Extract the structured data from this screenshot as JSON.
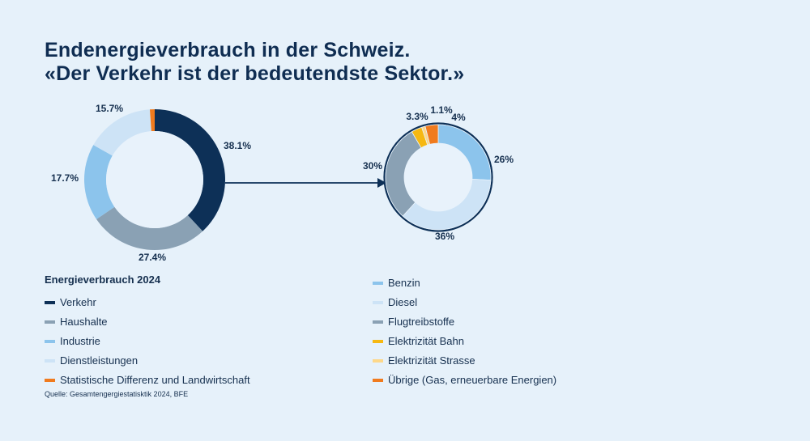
{
  "title_line1": "Endenergieverbrauch in der Schweiz.",
  "title_line2": "«Der Verkehr ist der bedeutendste Sektor.»",
  "chart_data": [
    {
      "type": "pie",
      "donut": true,
      "title": "Energieverbrauch 2024",
      "categories": [
        "Verkehr",
        "Haushalte",
        "Industrie",
        "Dienstleistungen",
        "Statistische Differenz und Landwirtschaft"
      ],
      "values": [
        38.1,
        27.4,
        17.7,
        15.7,
        1.1
      ],
      "labels": [
        "38.1%",
        "27.4%",
        "17.7%",
        "15.7%",
        ""
      ],
      "colors": [
        "#0d3057",
        "#8aa1b4",
        "#8cc4ec",
        "#cde3f6",
        "#f07b1e"
      ]
    },
    {
      "type": "pie",
      "donut": true,
      "categories": [
        "Benzin",
        "Diesel",
        "Flugtreibstoffe",
        "Elektrizität Bahn",
        "Elektrizität Strasse",
        "Übrige (Gas, erneuerbare Energien)"
      ],
      "values": [
        26,
        36,
        30,
        3.3,
        1.1,
        4
      ],
      "labels": [
        "26%",
        "36%",
        "30%",
        "3.3%",
        "1.1%",
        "4%"
      ],
      "colors": [
        "#8cc4ec",
        "#cde3f6",
        "#8aa1b4",
        "#f6b812",
        "#fdd88a",
        "#f07b1e"
      ]
    }
  ],
  "legend_left": {
    "heading": "Energieverbrauch 2024",
    "items": [
      {
        "label": "Verkehr",
        "color": "#0d3057"
      },
      {
        "label": "Haushalte",
        "color": "#8aa1b4"
      },
      {
        "label": "Industrie",
        "color": "#8cc4ec"
      },
      {
        "label": "Dienstleistungen",
        "color": "#cde3f6"
      },
      {
        "label": "Statistische Differenz und Landwirtschaft",
        "color": "#f07b1e"
      }
    ]
  },
  "legend_right": {
    "items": [
      {
        "label": "Benzin",
        "color": "#8cc4ec"
      },
      {
        "label": "Diesel",
        "color": "#cde3f6"
      },
      {
        "label": "Flugtreibstoffe",
        "color": "#8aa1b4"
      },
      {
        "label": "Elektrizität Bahn",
        "color": "#f6b812"
      },
      {
        "label": "Elektrizität Strasse",
        "color": "#fdd88a"
      },
      {
        "label": "Übrige (Gas, erneuerbare Energien)",
        "color": "#f07b1e"
      }
    ]
  },
  "source": "Quelle: Gesamtengergiestatisktik 2024, BFE",
  "colors": {
    "background": "#e6f1fa",
    "text": "#16304f",
    "arrow": "#0d3057"
  }
}
